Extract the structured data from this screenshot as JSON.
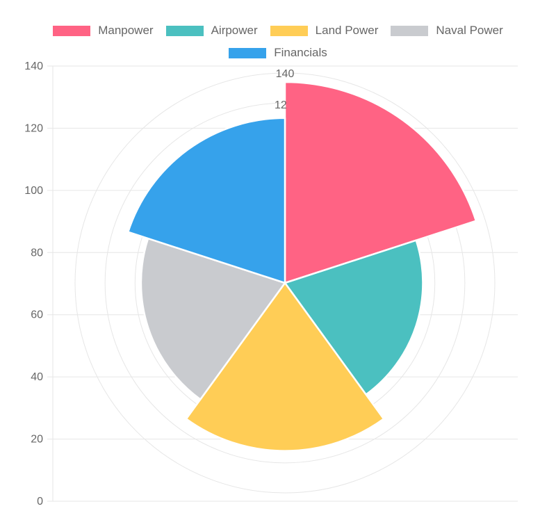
{
  "chart_data": {
    "type": "polarArea",
    "categories": [
      "Manpower",
      "Airpower",
      "Land Power",
      "Naval Power",
      "Financials"
    ],
    "values": [
      134,
      92,
      112,
      96,
      110
    ],
    "colors": [
      "#ff6384",
      "#4bc0c0",
      "#ffcd56",
      "#c9cbcf",
      "#36a2eb"
    ],
    "y_axis": {
      "min": 0,
      "max": 140,
      "ticks": [
        "0",
        "20",
        "40",
        "60",
        "80",
        "100",
        "120",
        "140"
      ]
    },
    "radial_axis": {
      "max": 140,
      "visible_labels": [
        "140",
        "12"
      ]
    },
    "legend_position": "top",
    "grid": true
  }
}
